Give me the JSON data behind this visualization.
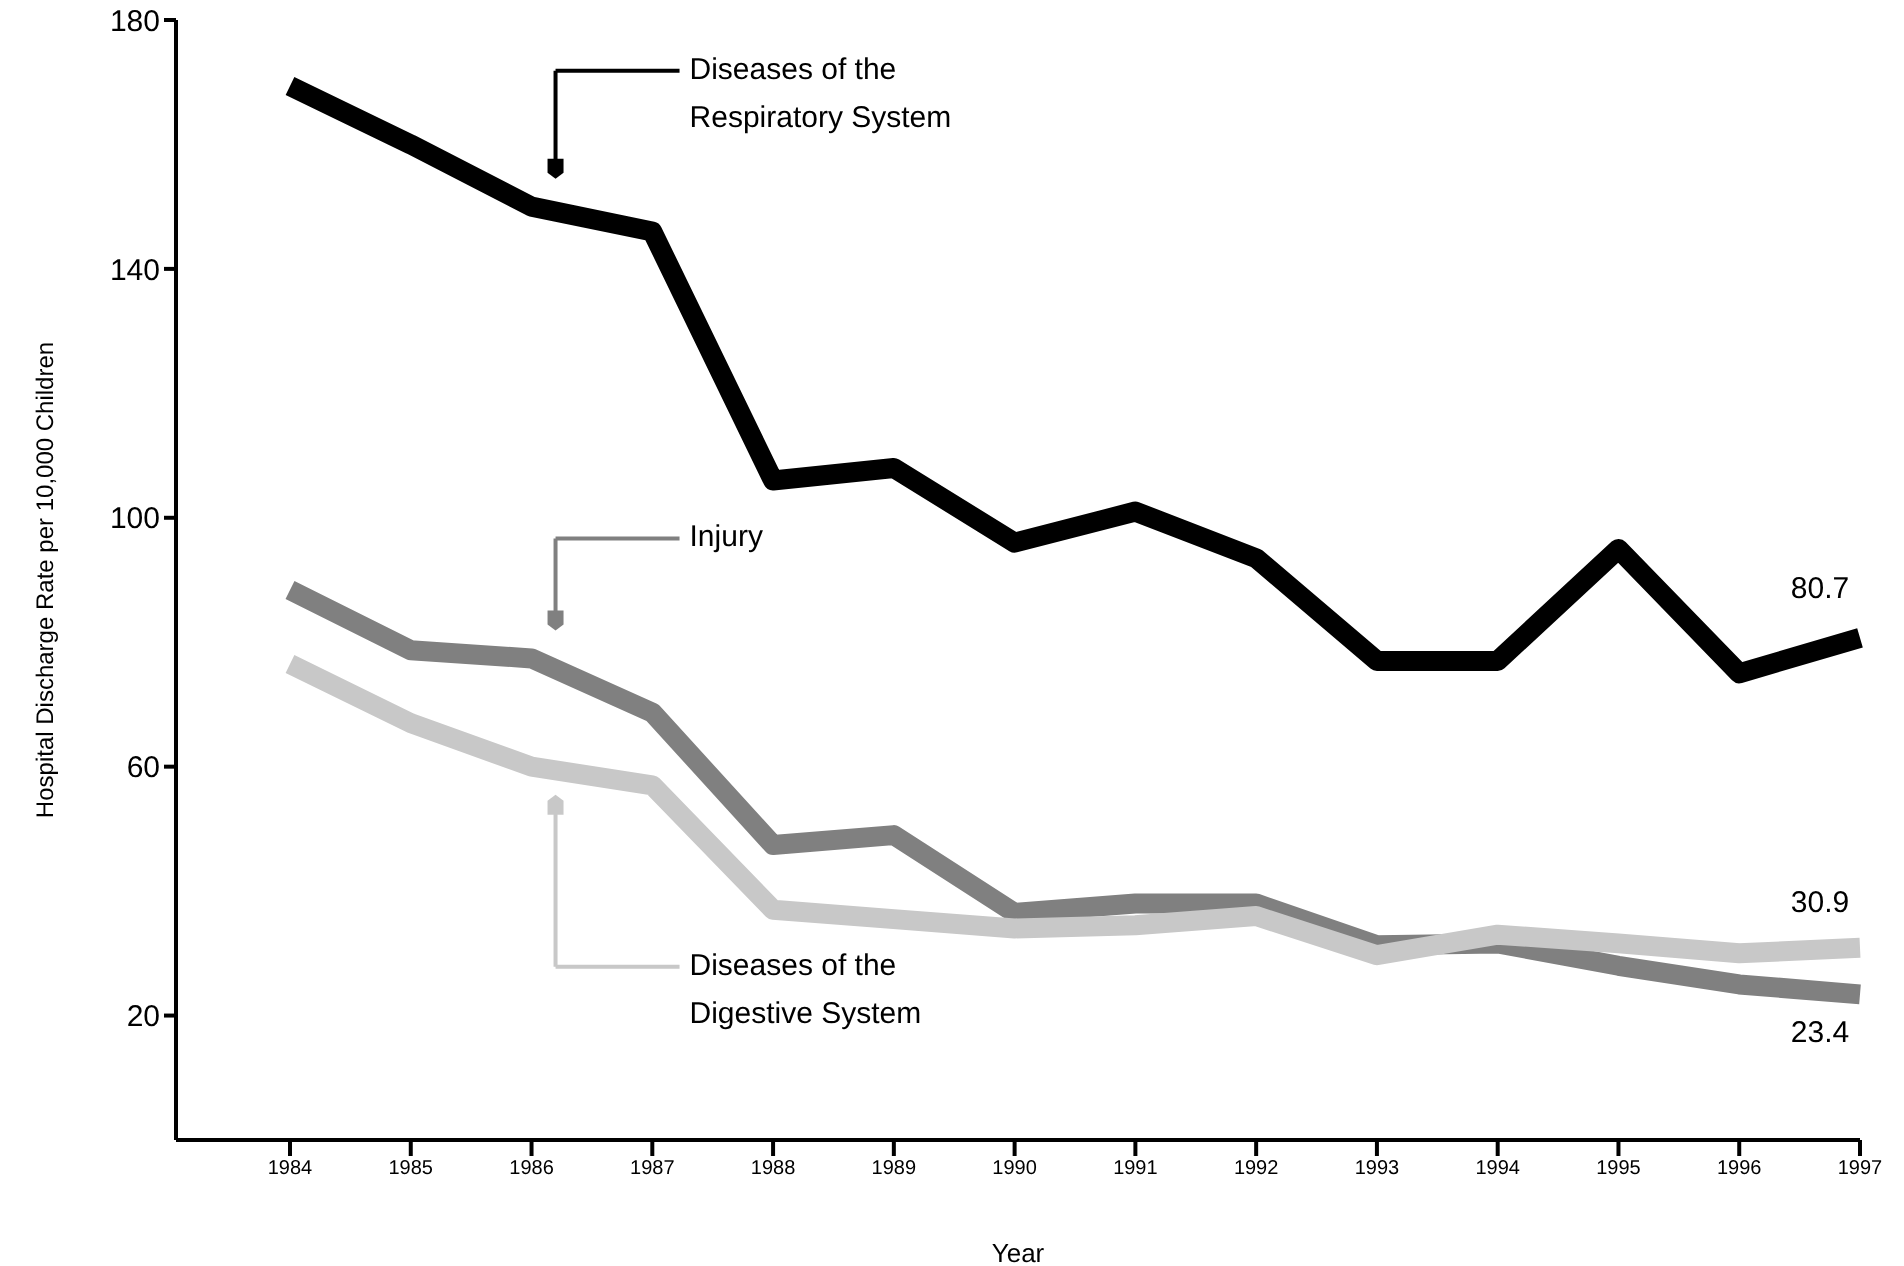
{
  "chart_data": {
    "type": "line",
    "xlabel": "Year",
    "ylabel": "Hospital Discharge Rate per 10,000 Children",
    "categories": [
      "1984",
      "1985",
      "1986",
      "1987",
      "1988",
      "1989",
      "1990",
      "1991",
      "1992",
      "1993",
      "1994",
      "1995",
      "1996",
      "1997"
    ],
    "series": [
      {
        "name": "Diseases of the Respiratory System",
        "color": "#000000",
        "values": [
          169.4,
          160,
          150,
          146,
          106,
          108,
          96,
          101,
          93.5,
          77,
          77,
          95,
          75,
          80.7
        ],
        "value_labels": [
          null,
          null,
          null,
          null,
          null,
          null,
          null,
          null,
          null,
          null,
          null,
          null,
          null,
          "80.7"
        ]
      },
      {
        "name": "Injury",
        "color": "#808080",
        "values": [
          88.4,
          78.7,
          77.4,
          68.7,
          47.4,
          49,
          36.5,
          38,
          38,
          31.3,
          31.6,
          28,
          25,
          23.4
        ],
        "value_labels": [
          null,
          null,
          null,
          null,
          null,
          null,
          null,
          null,
          null,
          null,
          null,
          null,
          null,
          "23.4"
        ]
      },
      {
        "name": "Diseases of the Digestive System",
        "color": "#c8c8c8",
        "values": [
          76.5,
          67,
          60,
          57,
          37,
          35.5,
          34,
          34.5,
          36,
          29.7,
          33,
          31.6,
          30,
          30.9
        ],
        "value_labels": [
          null,
          null,
          null,
          null,
          null,
          null,
          null,
          null,
          null,
          null,
          null,
          null,
          null,
          "30.9"
        ]
      }
    ],
    "ylim": [
      0,
      180
    ],
    "yticks": [
      20,
      60,
      100,
      140,
      180
    ],
    "grid": false,
    "legend": "top left",
    "marker": "none",
    "line_style": "solid"
  }
}
